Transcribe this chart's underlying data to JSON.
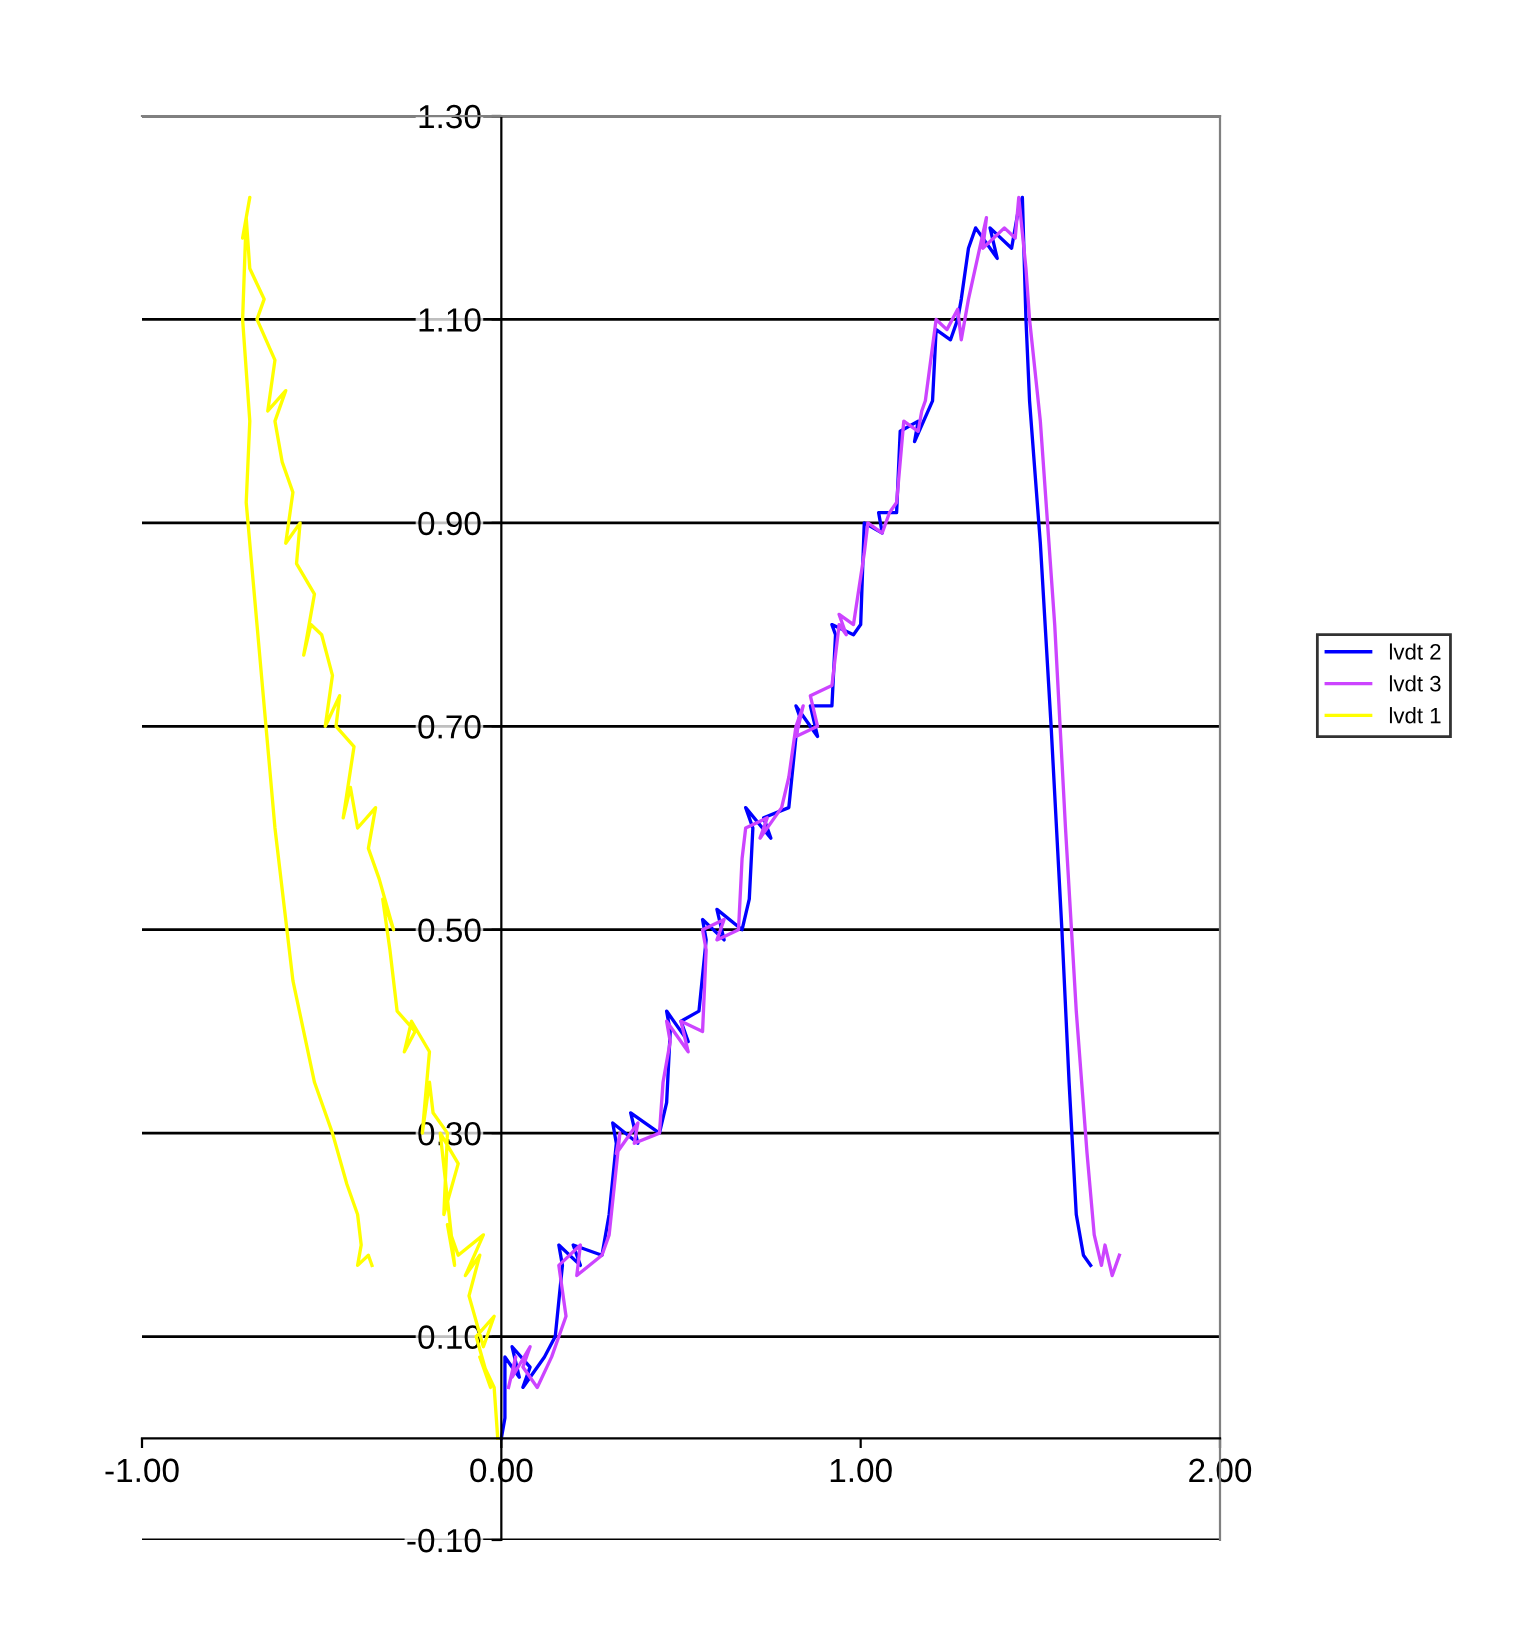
{
  "chart_data": {
    "type": "line",
    "xlim": [
      -1.0,
      2.0
    ],
    "ylim": [
      -0.1,
      1.3
    ],
    "xticks": [
      {
        "value": -1.0,
        "label": "-1.00"
      },
      {
        "value": 0.0,
        "label": "0.00"
      },
      {
        "value": 1.0,
        "label": "1.00"
      },
      {
        "value": 2.0,
        "label": "2.00"
      }
    ],
    "yticks": [
      {
        "value": -0.1,
        "label": "-0.10"
      },
      {
        "value": 0.1,
        "label": "0.10"
      },
      {
        "value": 0.3,
        "label": "0.30"
      },
      {
        "value": 0.5,
        "label": "0.50"
      },
      {
        "value": 0.7,
        "label": "0.70"
      },
      {
        "value": 0.9,
        "label": "0.90"
      },
      {
        "value": 1.1,
        "label": "1.10"
      },
      {
        "value": 1.3,
        "label": "1.30"
      }
    ],
    "grid": "y",
    "legend": "right",
    "marker": "none",
    "line_style": "solid",
    "series": [
      {
        "name": "lvdt 2",
        "color": "#0000ff",
        "x": [
          0.0,
          0.01,
          0.01,
          0.05,
          0.03,
          0.08,
          0.06,
          0.12,
          0.15,
          0.17,
          0.16,
          0.22,
          0.2,
          0.28,
          0.3,
          0.32,
          0.31,
          0.38,
          0.36,
          0.44,
          0.46,
          0.47,
          0.46,
          0.52,
          0.5,
          0.55,
          0.57,
          0.56,
          0.62,
          0.6,
          0.67,
          0.69,
          0.7,
          0.68,
          0.75,
          0.73,
          0.8,
          0.82,
          0.83,
          0.82,
          0.88,
          0.86,
          0.92,
          0.93,
          0.92,
          0.98,
          1.0,
          1.01,
          1.06,
          1.05,
          1.1,
          1.11,
          1.16,
          1.15,
          1.2,
          1.21,
          1.25,
          1.27,
          1.28,
          1.3,
          1.32,
          1.38,
          1.36,
          1.42,
          1.44,
          1.45,
          1.46,
          1.47,
          1.5,
          1.53,
          1.56,
          1.58,
          1.6,
          1.62,
          1.64
        ],
        "values": [
          0.0,
          0.02,
          0.08,
          0.06,
          0.09,
          0.07,
          0.05,
          0.08,
          0.1,
          0.17,
          0.19,
          0.17,
          0.19,
          0.18,
          0.22,
          0.29,
          0.31,
          0.29,
          0.32,
          0.3,
          0.33,
          0.4,
          0.42,
          0.39,
          0.41,
          0.42,
          0.49,
          0.51,
          0.49,
          0.52,
          0.5,
          0.53,
          0.6,
          0.62,
          0.59,
          0.61,
          0.62,
          0.69,
          0.71,
          0.72,
          0.69,
          0.72,
          0.72,
          0.79,
          0.8,
          0.79,
          0.8,
          0.9,
          0.89,
          0.91,
          0.91,
          0.99,
          1.0,
          0.98,
          1.02,
          1.09,
          1.08,
          1.1,
          1.12,
          1.17,
          1.19,
          1.16,
          1.19,
          1.17,
          1.21,
          1.22,
          1.1,
          1.02,
          0.88,
          0.7,
          0.5,
          0.35,
          0.22,
          0.18,
          0.17
        ]
      },
      {
        "name": "lvdt 3",
        "color": "#cc44ff",
        "x": [
          0.02,
          0.04,
          0.03,
          0.08,
          0.06,
          0.1,
          0.14,
          0.18,
          0.16,
          0.22,
          0.21,
          0.28,
          0.3,
          0.33,
          0.32,
          0.38,
          0.37,
          0.44,
          0.45,
          0.47,
          0.46,
          0.52,
          0.5,
          0.56,
          0.57,
          0.56,
          0.62,
          0.6,
          0.66,
          0.67,
          0.68,
          0.74,
          0.72,
          0.78,
          0.8,
          0.82,
          0.84,
          0.82,
          0.88,
          0.86,
          0.92,
          0.94,
          0.96,
          0.94,
          0.98,
          1.01,
          1.02,
          1.06,
          1.08,
          1.1,
          1.12,
          1.16,
          1.17,
          1.18,
          1.21,
          1.24,
          1.27,
          1.28,
          1.3,
          1.35,
          1.34,
          1.4,
          1.43,
          1.44,
          1.46,
          1.47,
          1.5,
          1.54,
          1.57,
          1.6,
          1.63,
          1.65,
          1.67,
          1.68,
          1.7,
          1.72
        ],
        "values": [
          0.05,
          0.08,
          0.06,
          0.09,
          0.07,
          0.05,
          0.08,
          0.12,
          0.17,
          0.19,
          0.16,
          0.18,
          0.2,
          0.3,
          0.28,
          0.31,
          0.29,
          0.3,
          0.35,
          0.39,
          0.41,
          0.38,
          0.41,
          0.4,
          0.48,
          0.5,
          0.51,
          0.49,
          0.5,
          0.57,
          0.6,
          0.61,
          0.59,
          0.62,
          0.65,
          0.7,
          0.72,
          0.69,
          0.7,
          0.73,
          0.74,
          0.8,
          0.79,
          0.81,
          0.8,
          0.87,
          0.9,
          0.89,
          0.91,
          0.92,
          1.0,
          0.99,
          1.01,
          1.02,
          1.1,
          1.09,
          1.11,
          1.08,
          1.12,
          1.2,
          1.17,
          1.19,
          1.18,
          1.22,
          1.15,
          1.1,
          1.0,
          0.8,
          0.6,
          0.42,
          0.28,
          0.2,
          0.17,
          0.19,
          0.16,
          0.18
        ]
      },
      {
        "name": "lvdt 1",
        "color": "#ffff00",
        "x": [
          -0.01,
          -0.02,
          -0.06,
          -0.03,
          -0.07,
          -0.02,
          -0.05,
          -0.09,
          -0.06,
          -0.1,
          -0.05,
          -0.12,
          -0.15,
          -0.13,
          -0.17,
          -0.12,
          -0.16,
          -0.15,
          -0.19,
          -0.2,
          -0.22,
          -0.2,
          -0.25,
          -0.27,
          -0.24,
          -0.29,
          -0.31,
          -0.33,
          -0.3,
          -0.34,
          -0.37,
          -0.35,
          -0.4,
          -0.42,
          -0.44,
          -0.41,
          -0.46,
          -0.45,
          -0.49,
          -0.47,
          -0.5,
          -0.53,
          -0.55,
          -0.52,
          -0.57,
          -0.56,
          -0.6,
          -0.58,
          -0.61,
          -0.63,
          -0.6,
          -0.65,
          -0.63,
          -0.68,
          -0.66,
          -0.7,
          -0.71,
          -0.7,
          -0.72,
          -0.71,
          -0.72,
          -0.7,
          -0.71,
          -0.68,
          -0.63,
          -0.58,
          -0.52,
          -0.47,
          -0.43,
          -0.4,
          -0.39,
          -0.4,
          -0.37,
          -0.36
        ],
        "values": [
          0.0,
          0.05,
          0.08,
          0.05,
          0.1,
          0.12,
          0.09,
          0.14,
          0.18,
          0.16,
          0.2,
          0.18,
          0.21,
          0.17,
          0.3,
          0.27,
          0.22,
          0.3,
          0.32,
          0.35,
          0.3,
          0.38,
          0.41,
          0.38,
          0.4,
          0.42,
          0.48,
          0.53,
          0.5,
          0.55,
          0.58,
          0.62,
          0.6,
          0.64,
          0.61,
          0.68,
          0.7,
          0.73,
          0.7,
          0.75,
          0.79,
          0.8,
          0.77,
          0.83,
          0.86,
          0.9,
          0.88,
          0.93,
          0.96,
          1.0,
          1.03,
          1.01,
          1.06,
          1.1,
          1.12,
          1.15,
          1.2,
          1.22,
          1.18,
          1.2,
          1.1,
          1.0,
          0.92,
          0.8,
          0.6,
          0.45,
          0.35,
          0.3,
          0.25,
          0.22,
          0.19,
          0.17,
          0.18,
          0.17
        ]
      }
    ]
  }
}
